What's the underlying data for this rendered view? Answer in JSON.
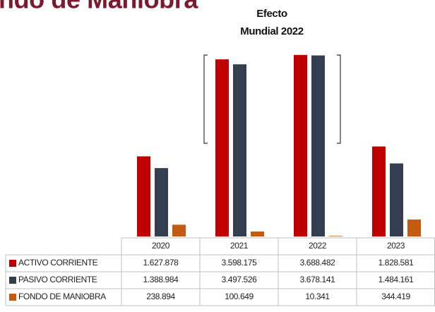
{
  "chart_data": {
    "type": "bar",
    "title": "ndo de Maniobra",
    "annotation": [
      "Efecto",
      "Mundial 2022"
    ],
    "categories": [
      "2020",
      "2021",
      "2022",
      "2023"
    ],
    "series": [
      {
        "name": "ACTIVO CORRIENTE",
        "color": "#c00000",
        "values": [
          1627878,
          3598175,
          3688482,
          1828581
        ],
        "value_labels": [
          "1.627.878",
          "3.598.175",
          "3.688.482",
          "1.828.581"
        ]
      },
      {
        "name": "PASIVO CORRIENTE",
        "color": "#333f50",
        "values": [
          1388984,
          3497526,
          3678141,
          1484161
        ],
        "value_labels": [
          "1.388.984",
          "3.497.526",
          "3.678.141",
          "1.484.161"
        ]
      },
      {
        "name": "FONDO DE MANIOBRA",
        "color": "#c55a11",
        "values": [
          238894,
          100649,
          10341,
          344419
        ],
        "value_labels": [
          "238.894",
          "100.649",
          "10.341",
          "344.419"
        ]
      }
    ],
    "ylim": [
      0,
      3700000
    ]
  }
}
